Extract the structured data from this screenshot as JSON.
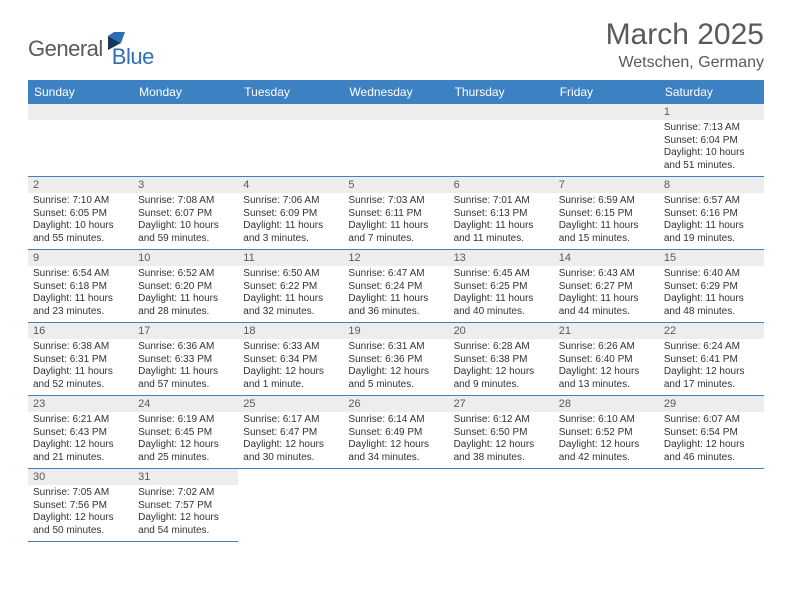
{
  "logo": {
    "part1": "General",
    "part2": "Blue"
  },
  "title": "March 2025",
  "location": "Wetschen, Germany",
  "colors": {
    "header_bg": "#3c81c2",
    "header_fg": "#ffffff",
    "daynum_bg": "#ededed",
    "text_muted": "#5a5a5a",
    "border": "#3c81c2"
  },
  "weekdays": [
    "Sunday",
    "Monday",
    "Tuesday",
    "Wednesday",
    "Thursday",
    "Friday",
    "Saturday"
  ],
  "weeks": [
    [
      null,
      null,
      null,
      null,
      null,
      null,
      {
        "n": "1",
        "sr": "Sunrise: 7:13 AM",
        "ss": "Sunset: 6:04 PM",
        "d1": "Daylight: 10 hours",
        "d2": "and 51 minutes."
      }
    ],
    [
      {
        "n": "2",
        "sr": "Sunrise: 7:10 AM",
        "ss": "Sunset: 6:05 PM",
        "d1": "Daylight: 10 hours",
        "d2": "and 55 minutes."
      },
      {
        "n": "3",
        "sr": "Sunrise: 7:08 AM",
        "ss": "Sunset: 6:07 PM",
        "d1": "Daylight: 10 hours",
        "d2": "and 59 minutes."
      },
      {
        "n": "4",
        "sr": "Sunrise: 7:06 AM",
        "ss": "Sunset: 6:09 PM",
        "d1": "Daylight: 11 hours",
        "d2": "and 3 minutes."
      },
      {
        "n": "5",
        "sr": "Sunrise: 7:03 AM",
        "ss": "Sunset: 6:11 PM",
        "d1": "Daylight: 11 hours",
        "d2": "and 7 minutes."
      },
      {
        "n": "6",
        "sr": "Sunrise: 7:01 AM",
        "ss": "Sunset: 6:13 PM",
        "d1": "Daylight: 11 hours",
        "d2": "and 11 minutes."
      },
      {
        "n": "7",
        "sr": "Sunrise: 6:59 AM",
        "ss": "Sunset: 6:15 PM",
        "d1": "Daylight: 11 hours",
        "d2": "and 15 minutes."
      },
      {
        "n": "8",
        "sr": "Sunrise: 6:57 AM",
        "ss": "Sunset: 6:16 PM",
        "d1": "Daylight: 11 hours",
        "d2": "and 19 minutes."
      }
    ],
    [
      {
        "n": "9",
        "sr": "Sunrise: 6:54 AM",
        "ss": "Sunset: 6:18 PM",
        "d1": "Daylight: 11 hours",
        "d2": "and 23 minutes."
      },
      {
        "n": "10",
        "sr": "Sunrise: 6:52 AM",
        "ss": "Sunset: 6:20 PM",
        "d1": "Daylight: 11 hours",
        "d2": "and 28 minutes."
      },
      {
        "n": "11",
        "sr": "Sunrise: 6:50 AM",
        "ss": "Sunset: 6:22 PM",
        "d1": "Daylight: 11 hours",
        "d2": "and 32 minutes."
      },
      {
        "n": "12",
        "sr": "Sunrise: 6:47 AM",
        "ss": "Sunset: 6:24 PM",
        "d1": "Daylight: 11 hours",
        "d2": "and 36 minutes."
      },
      {
        "n": "13",
        "sr": "Sunrise: 6:45 AM",
        "ss": "Sunset: 6:25 PM",
        "d1": "Daylight: 11 hours",
        "d2": "and 40 minutes."
      },
      {
        "n": "14",
        "sr": "Sunrise: 6:43 AM",
        "ss": "Sunset: 6:27 PM",
        "d1": "Daylight: 11 hours",
        "d2": "and 44 minutes."
      },
      {
        "n": "15",
        "sr": "Sunrise: 6:40 AM",
        "ss": "Sunset: 6:29 PM",
        "d1": "Daylight: 11 hours",
        "d2": "and 48 minutes."
      }
    ],
    [
      {
        "n": "16",
        "sr": "Sunrise: 6:38 AM",
        "ss": "Sunset: 6:31 PM",
        "d1": "Daylight: 11 hours",
        "d2": "and 52 minutes."
      },
      {
        "n": "17",
        "sr": "Sunrise: 6:36 AM",
        "ss": "Sunset: 6:33 PM",
        "d1": "Daylight: 11 hours",
        "d2": "and 57 minutes."
      },
      {
        "n": "18",
        "sr": "Sunrise: 6:33 AM",
        "ss": "Sunset: 6:34 PM",
        "d1": "Daylight: 12 hours",
        "d2": "and 1 minute."
      },
      {
        "n": "19",
        "sr": "Sunrise: 6:31 AM",
        "ss": "Sunset: 6:36 PM",
        "d1": "Daylight: 12 hours",
        "d2": "and 5 minutes."
      },
      {
        "n": "20",
        "sr": "Sunrise: 6:28 AM",
        "ss": "Sunset: 6:38 PM",
        "d1": "Daylight: 12 hours",
        "d2": "and 9 minutes."
      },
      {
        "n": "21",
        "sr": "Sunrise: 6:26 AM",
        "ss": "Sunset: 6:40 PM",
        "d1": "Daylight: 12 hours",
        "d2": "and 13 minutes."
      },
      {
        "n": "22",
        "sr": "Sunrise: 6:24 AM",
        "ss": "Sunset: 6:41 PM",
        "d1": "Daylight: 12 hours",
        "d2": "and 17 minutes."
      }
    ],
    [
      {
        "n": "23",
        "sr": "Sunrise: 6:21 AM",
        "ss": "Sunset: 6:43 PM",
        "d1": "Daylight: 12 hours",
        "d2": "and 21 minutes."
      },
      {
        "n": "24",
        "sr": "Sunrise: 6:19 AM",
        "ss": "Sunset: 6:45 PM",
        "d1": "Daylight: 12 hours",
        "d2": "and 25 minutes."
      },
      {
        "n": "25",
        "sr": "Sunrise: 6:17 AM",
        "ss": "Sunset: 6:47 PM",
        "d1": "Daylight: 12 hours",
        "d2": "and 30 minutes."
      },
      {
        "n": "26",
        "sr": "Sunrise: 6:14 AM",
        "ss": "Sunset: 6:49 PM",
        "d1": "Daylight: 12 hours",
        "d2": "and 34 minutes."
      },
      {
        "n": "27",
        "sr": "Sunrise: 6:12 AM",
        "ss": "Sunset: 6:50 PM",
        "d1": "Daylight: 12 hours",
        "d2": "and 38 minutes."
      },
      {
        "n": "28",
        "sr": "Sunrise: 6:10 AM",
        "ss": "Sunset: 6:52 PM",
        "d1": "Daylight: 12 hours",
        "d2": "and 42 minutes."
      },
      {
        "n": "29",
        "sr": "Sunrise: 6:07 AM",
        "ss": "Sunset: 6:54 PM",
        "d1": "Daylight: 12 hours",
        "d2": "and 46 minutes."
      }
    ],
    [
      {
        "n": "30",
        "sr": "Sunrise: 7:05 AM",
        "ss": "Sunset: 7:56 PM",
        "d1": "Daylight: 12 hours",
        "d2": "and 50 minutes."
      },
      {
        "n": "31",
        "sr": "Sunrise: 7:02 AM",
        "ss": "Sunset: 7:57 PM",
        "d1": "Daylight: 12 hours",
        "d2": "and 54 minutes."
      },
      null,
      null,
      null,
      null,
      null
    ]
  ]
}
